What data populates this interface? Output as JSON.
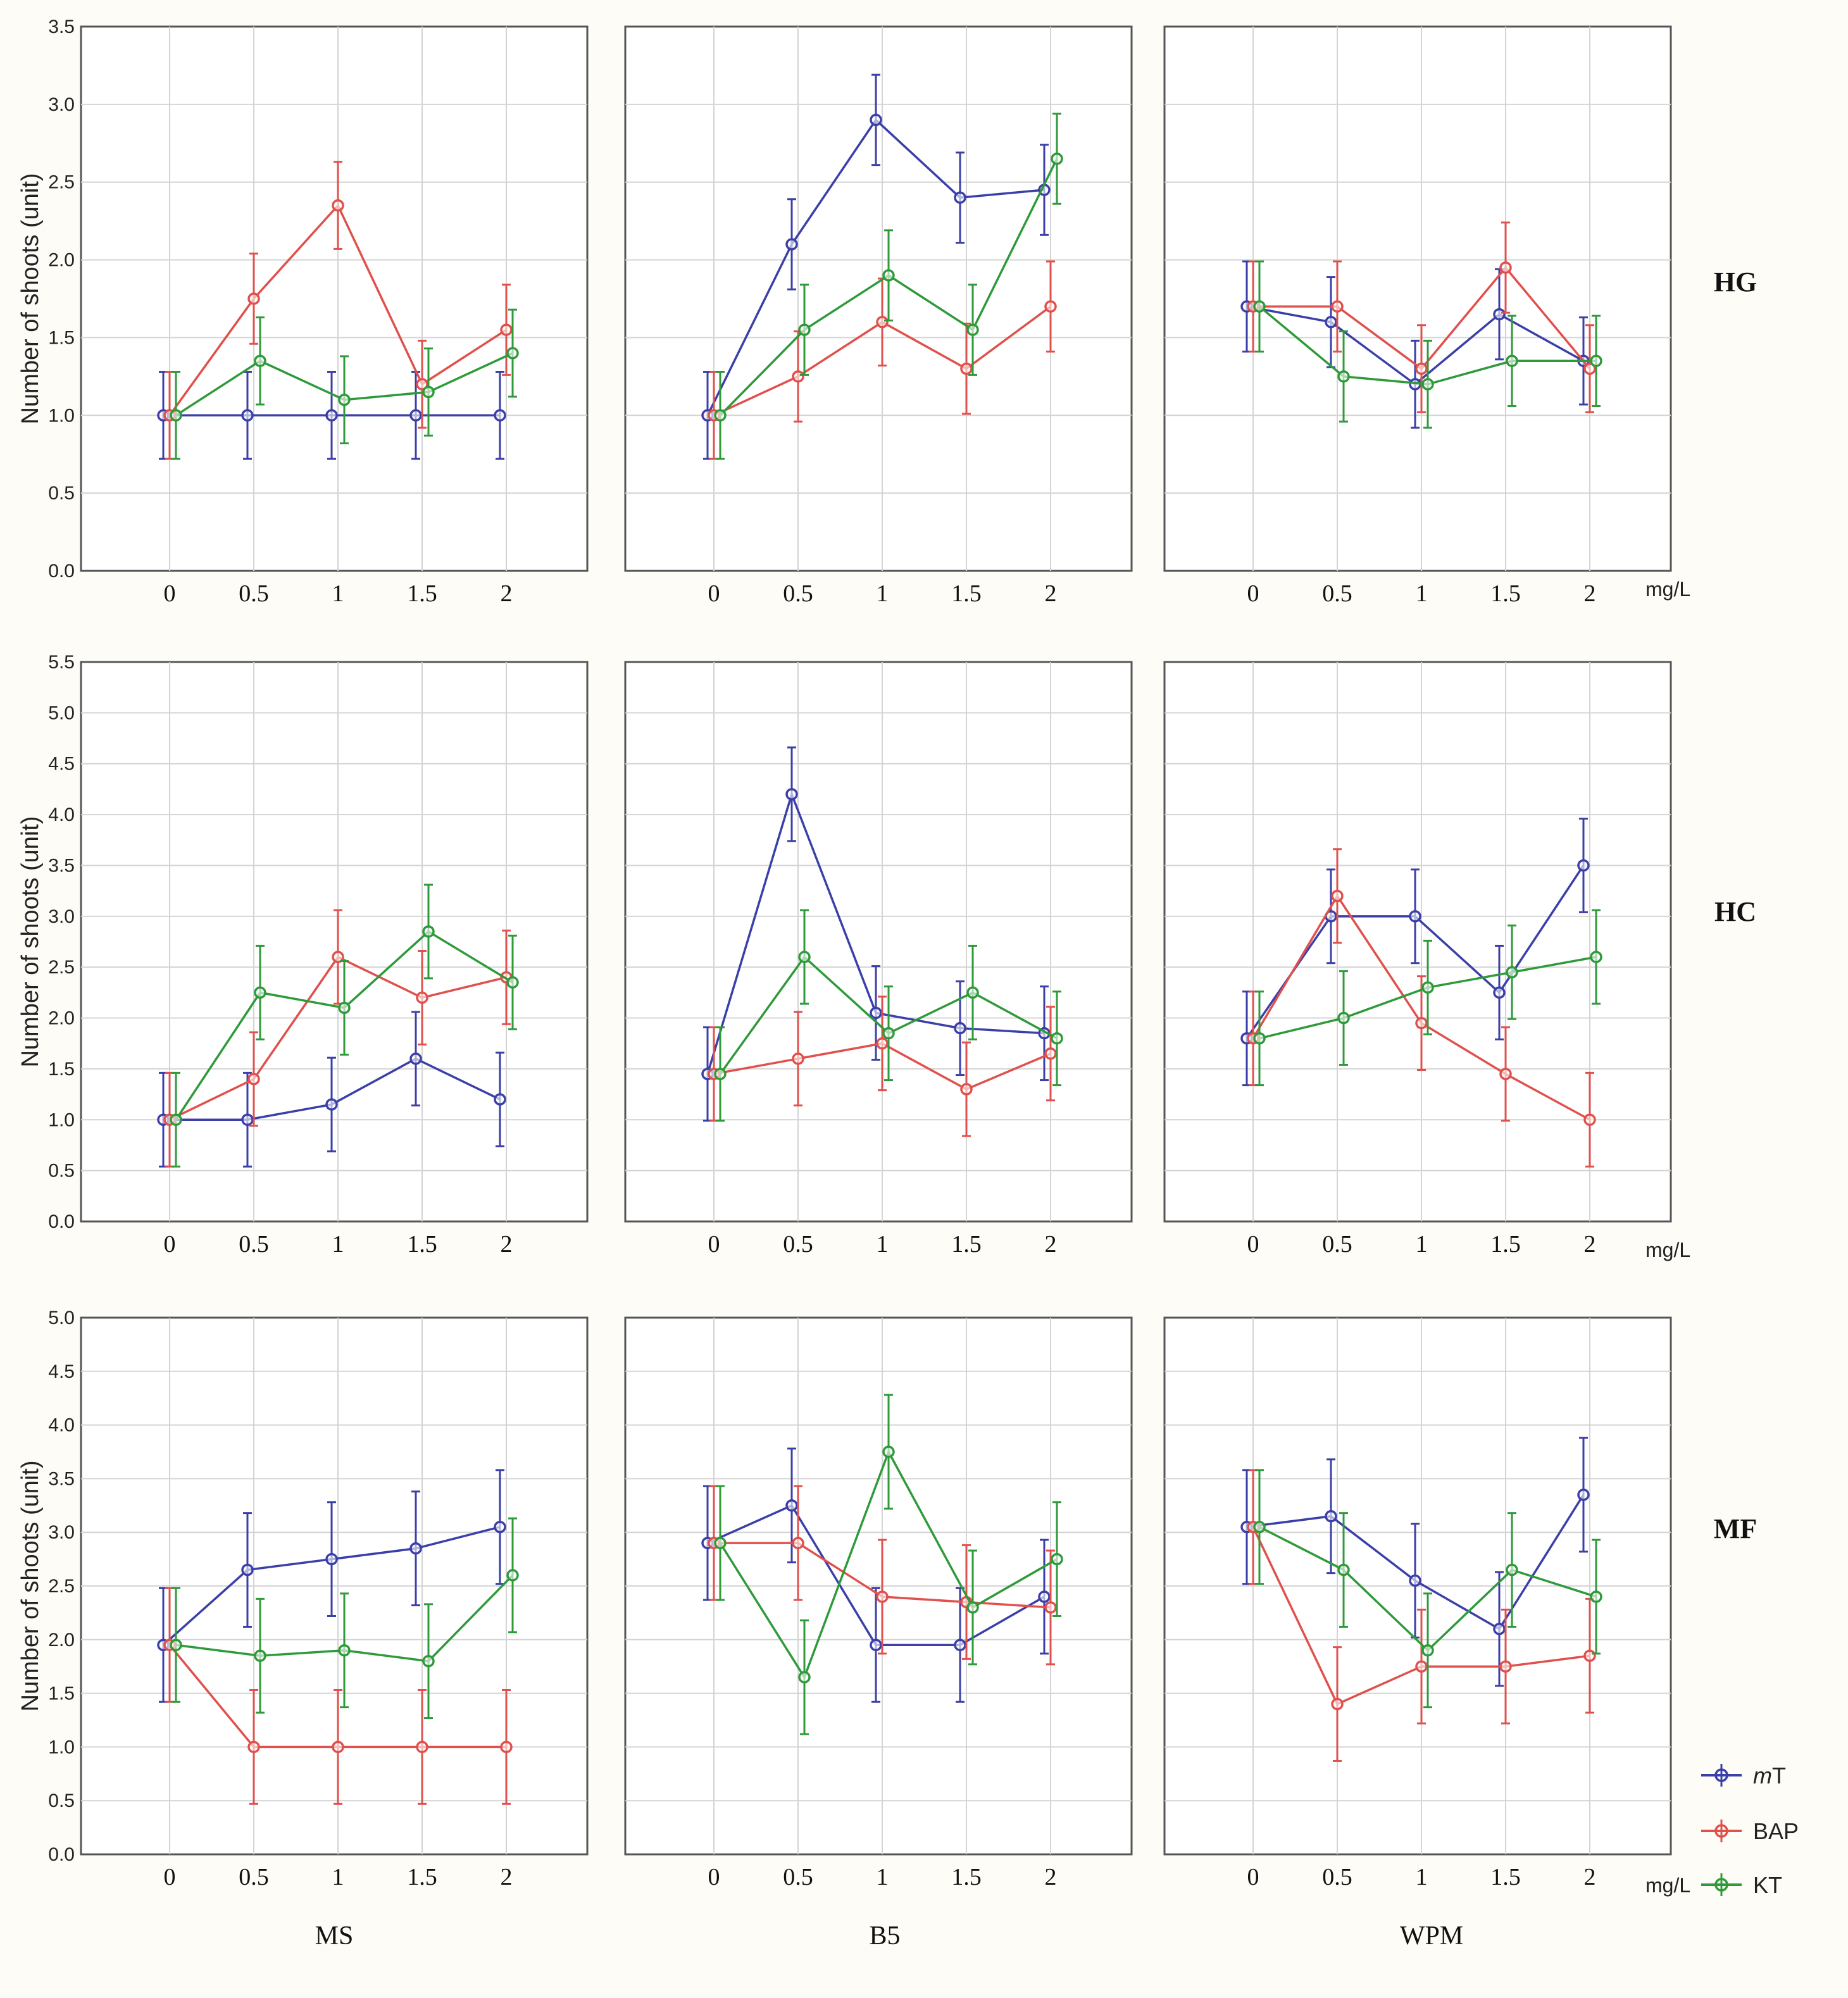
{
  "rows": [
    {
      "label": "HG",
      "ymax": 3.5,
      "ticks": [
        "0.0",
        "0.5",
        "1.0",
        "1.5",
        "2.0",
        "2.5",
        "3.0",
        "3.5"
      ],
      "tick_step": 0.5
    },
    {
      "label": "HC",
      "ymax": 5.5,
      "ticks": [
        "0.0",
        "0.5",
        "1.0",
        "1.5",
        "2.0",
        "2.5",
        "3.0",
        "3.5",
        "4.0",
        "4.5",
        "5.0",
        "5.5"
      ],
      "tick_step": 0.5
    },
    {
      "label": "MF",
      "ymax": 5.0,
      "ticks": [
        "0.0",
        "0.5",
        "1.0",
        "1.5",
        "2.0",
        "2.5",
        "3.0",
        "3.5",
        "4.0",
        "4.5",
        "5.0"
      ],
      "tick_step": 0.5
    }
  ],
  "columns": [
    "MS",
    "B5",
    "WPM"
  ],
  "ylabel": "Number of shoots (unit)",
  "unit_label": "mg/L",
  "x_tick_labels": [
    "0",
    "0.5",
    "1",
    "1.5",
    "2"
  ],
  "legend": [
    {
      "name": "mT",
      "italic_prefix": "m",
      "rest": "T",
      "color": "#3b3fa8"
    },
    {
      "name": "BAP",
      "italic_prefix": "",
      "rest": "BAP",
      "color": "#e0504c"
    },
    {
      "name": "KT",
      "italic_prefix": "",
      "rest": "KT",
      "color": "#2e9a3a"
    }
  ],
  "chart_data": [
    {
      "type": "line",
      "title": "",
      "row": "HG",
      "column": "MS",
      "x": [
        0,
        0.5,
        1,
        1.5,
        2
      ],
      "ylim": [
        0,
        3.5
      ],
      "ylabel": "Number of shoots (unit)",
      "series": [
        {
          "name": "mT",
          "values": [
            1.0,
            1.0,
            1.0,
            1.0,
            1.0
          ],
          "error": [
            0.28,
            0.28,
            0.28,
            0.28,
            0.28
          ]
        },
        {
          "name": "BAP",
          "values": [
            1.0,
            1.75,
            2.35,
            1.2,
            1.55
          ],
          "error": [
            0.28,
            0.29,
            0.28,
            0.28,
            0.29
          ]
        },
        {
          "name": "KT",
          "values": [
            1.0,
            1.35,
            1.1,
            1.15,
            1.4
          ],
          "error": [
            0.28,
            0.28,
            0.28,
            0.28,
            0.28
          ]
        }
      ]
    },
    {
      "type": "line",
      "title": "",
      "row": "HG",
      "column": "B5",
      "x": [
        0,
        0.5,
        1,
        1.5,
        2
      ],
      "ylim": [
        0,
        3.5
      ],
      "series": [
        {
          "name": "mT",
          "values": [
            1.0,
            2.1,
            2.9,
            2.4,
            2.45
          ],
          "error": [
            0.28,
            0.29,
            0.29,
            0.29,
            0.29
          ]
        },
        {
          "name": "BAP",
          "values": [
            1.0,
            1.25,
            1.6,
            1.3,
            1.7
          ],
          "error": [
            0.28,
            0.29,
            0.28,
            0.29,
            0.29
          ]
        },
        {
          "name": "KT",
          "values": [
            1.0,
            1.55,
            1.9,
            1.55,
            2.65
          ],
          "error": [
            0.28,
            0.29,
            0.29,
            0.29,
            0.29
          ]
        }
      ]
    },
    {
      "type": "line",
      "title": "",
      "row": "HG",
      "column": "WPM",
      "x": [
        0,
        0.5,
        1,
        1.5,
        2
      ],
      "ylim": [
        0,
        3.5
      ],
      "xlabel": "mg/L",
      "series": [
        {
          "name": "mT",
          "values": [
            1.7,
            1.6,
            1.2,
            1.65,
            1.35
          ],
          "error": [
            0.29,
            0.29,
            0.28,
            0.29,
            0.28
          ]
        },
        {
          "name": "BAP",
          "values": [
            1.7,
            1.7,
            1.3,
            1.95,
            1.3
          ],
          "error": [
            0.29,
            0.29,
            0.28,
            0.29,
            0.28
          ]
        },
        {
          "name": "KT",
          "values": [
            1.7,
            1.25,
            1.2,
            1.35,
            1.35
          ],
          "error": [
            0.29,
            0.29,
            0.28,
            0.29,
            0.29
          ]
        }
      ]
    },
    {
      "type": "line",
      "title": "",
      "row": "HC",
      "column": "MS",
      "x": [
        0,
        0.5,
        1,
        1.5,
        2
      ],
      "ylim": [
        0,
        5.5
      ],
      "ylabel": "Number of shoots (unit)",
      "series": [
        {
          "name": "mT",
          "values": [
            1.0,
            1.0,
            1.15,
            1.6,
            1.2
          ],
          "error": [
            0.46,
            0.46,
            0.46,
            0.46,
            0.46
          ]
        },
        {
          "name": "BAP",
          "values": [
            1.0,
            1.4,
            2.6,
            2.2,
            2.4
          ],
          "error": [
            0.46,
            0.46,
            0.46,
            0.46,
            0.46
          ]
        },
        {
          "name": "KT",
          "values": [
            1.0,
            2.25,
            2.1,
            2.85,
            2.35
          ],
          "error": [
            0.46,
            0.46,
            0.46,
            0.46,
            0.46
          ]
        }
      ]
    },
    {
      "type": "line",
      "title": "",
      "row": "HC",
      "column": "B5",
      "x": [
        0,
        0.5,
        1,
        1.5,
        2
      ],
      "ylim": [
        0,
        5.5
      ],
      "series": [
        {
          "name": "mT",
          "values": [
            1.45,
            4.2,
            2.05,
            1.9,
            1.85
          ],
          "error": [
            0.46,
            0.46,
            0.46,
            0.46,
            0.46
          ]
        },
        {
          "name": "BAP",
          "values": [
            1.45,
            1.6,
            1.75,
            1.3,
            1.65
          ],
          "error": [
            0.46,
            0.46,
            0.46,
            0.46,
            0.46
          ]
        },
        {
          "name": "KT",
          "values": [
            1.45,
            2.6,
            1.85,
            2.25,
            1.8
          ],
          "error": [
            0.46,
            0.46,
            0.46,
            0.46,
            0.46
          ]
        }
      ]
    },
    {
      "type": "line",
      "title": "",
      "row": "HC",
      "column": "WPM",
      "x": [
        0,
        0.5,
        1,
        1.5,
        2
      ],
      "ylim": [
        0,
        5.5
      ],
      "xlabel": "mg/L",
      "series": [
        {
          "name": "mT",
          "values": [
            1.8,
            3.0,
            3.0,
            2.25,
            3.5
          ],
          "error": [
            0.46,
            0.46,
            0.46,
            0.46,
            0.46
          ]
        },
        {
          "name": "BAP",
          "values": [
            1.8,
            3.2,
            1.95,
            1.45,
            1.0
          ],
          "error": [
            0.46,
            0.46,
            0.46,
            0.46,
            0.46
          ]
        },
        {
          "name": "KT",
          "values": [
            1.8,
            2.0,
            2.3,
            2.45,
            2.6
          ],
          "error": [
            0.46,
            0.46,
            0.46,
            0.46,
            0.46
          ]
        }
      ]
    },
    {
      "type": "line",
      "title": "",
      "row": "MF",
      "column": "MS",
      "x": [
        0,
        0.5,
        1,
        1.5,
        2
      ],
      "ylim": [
        0,
        5.0
      ],
      "ylabel": "Number of shoots (unit)",
      "xlabel": "MS",
      "series": [
        {
          "name": "mT",
          "values": [
            1.95,
            2.65,
            2.75,
            2.85,
            3.05
          ],
          "error": [
            0.53,
            0.53,
            0.53,
            0.53,
            0.53
          ]
        },
        {
          "name": "BAP",
          "values": [
            1.95,
            1.0,
            1.0,
            1.0,
            1.0
          ],
          "error": [
            0.53,
            0.53,
            0.53,
            0.53,
            0.53
          ]
        },
        {
          "name": "KT",
          "values": [
            1.95,
            1.85,
            1.9,
            1.8,
            2.6
          ],
          "error": [
            0.53,
            0.53,
            0.53,
            0.53,
            0.53
          ]
        }
      ]
    },
    {
      "type": "line",
      "title": "",
      "row": "MF",
      "column": "B5",
      "x": [
        0,
        0.5,
        1,
        1.5,
        2
      ],
      "ylim": [
        0,
        5.0
      ],
      "xlabel": "B5",
      "series": [
        {
          "name": "mT",
          "values": [
            2.9,
            3.25,
            1.95,
            1.95,
            2.4
          ],
          "error": [
            0.53,
            0.53,
            0.53,
            0.53,
            0.53
          ]
        },
        {
          "name": "BAP",
          "values": [
            2.9,
            2.9,
            2.4,
            2.35,
            2.3
          ],
          "error": [
            0.53,
            0.53,
            0.53,
            0.53,
            0.53
          ]
        },
        {
          "name": "KT",
          "values": [
            2.9,
            1.65,
            3.75,
            2.3,
            2.75
          ],
          "error": [
            0.53,
            0.53,
            0.53,
            0.53,
            0.53
          ]
        }
      ]
    },
    {
      "type": "line",
      "title": "",
      "row": "MF",
      "column": "WPM",
      "x": [
        0,
        0.5,
        1,
        1.5,
        2
      ],
      "ylim": [
        0,
        5.0
      ],
      "xlabel": "WPM",
      "series": [
        {
          "name": "mT",
          "values": [
            3.05,
            3.15,
            2.55,
            2.1,
            3.35
          ],
          "error": [
            0.53,
            0.53,
            0.53,
            0.53,
            0.53
          ]
        },
        {
          "name": "BAP",
          "values": [
            3.05,
            1.4,
            1.75,
            1.75,
            1.85
          ],
          "error": [
            0.53,
            0.53,
            0.53,
            0.53,
            0.53
          ]
        },
        {
          "name": "KT",
          "values": [
            3.05,
            2.65,
            1.9,
            2.65,
            2.4
          ],
          "error": [
            0.53,
            0.53,
            0.53,
            0.53,
            0.53
          ]
        }
      ]
    }
  ]
}
